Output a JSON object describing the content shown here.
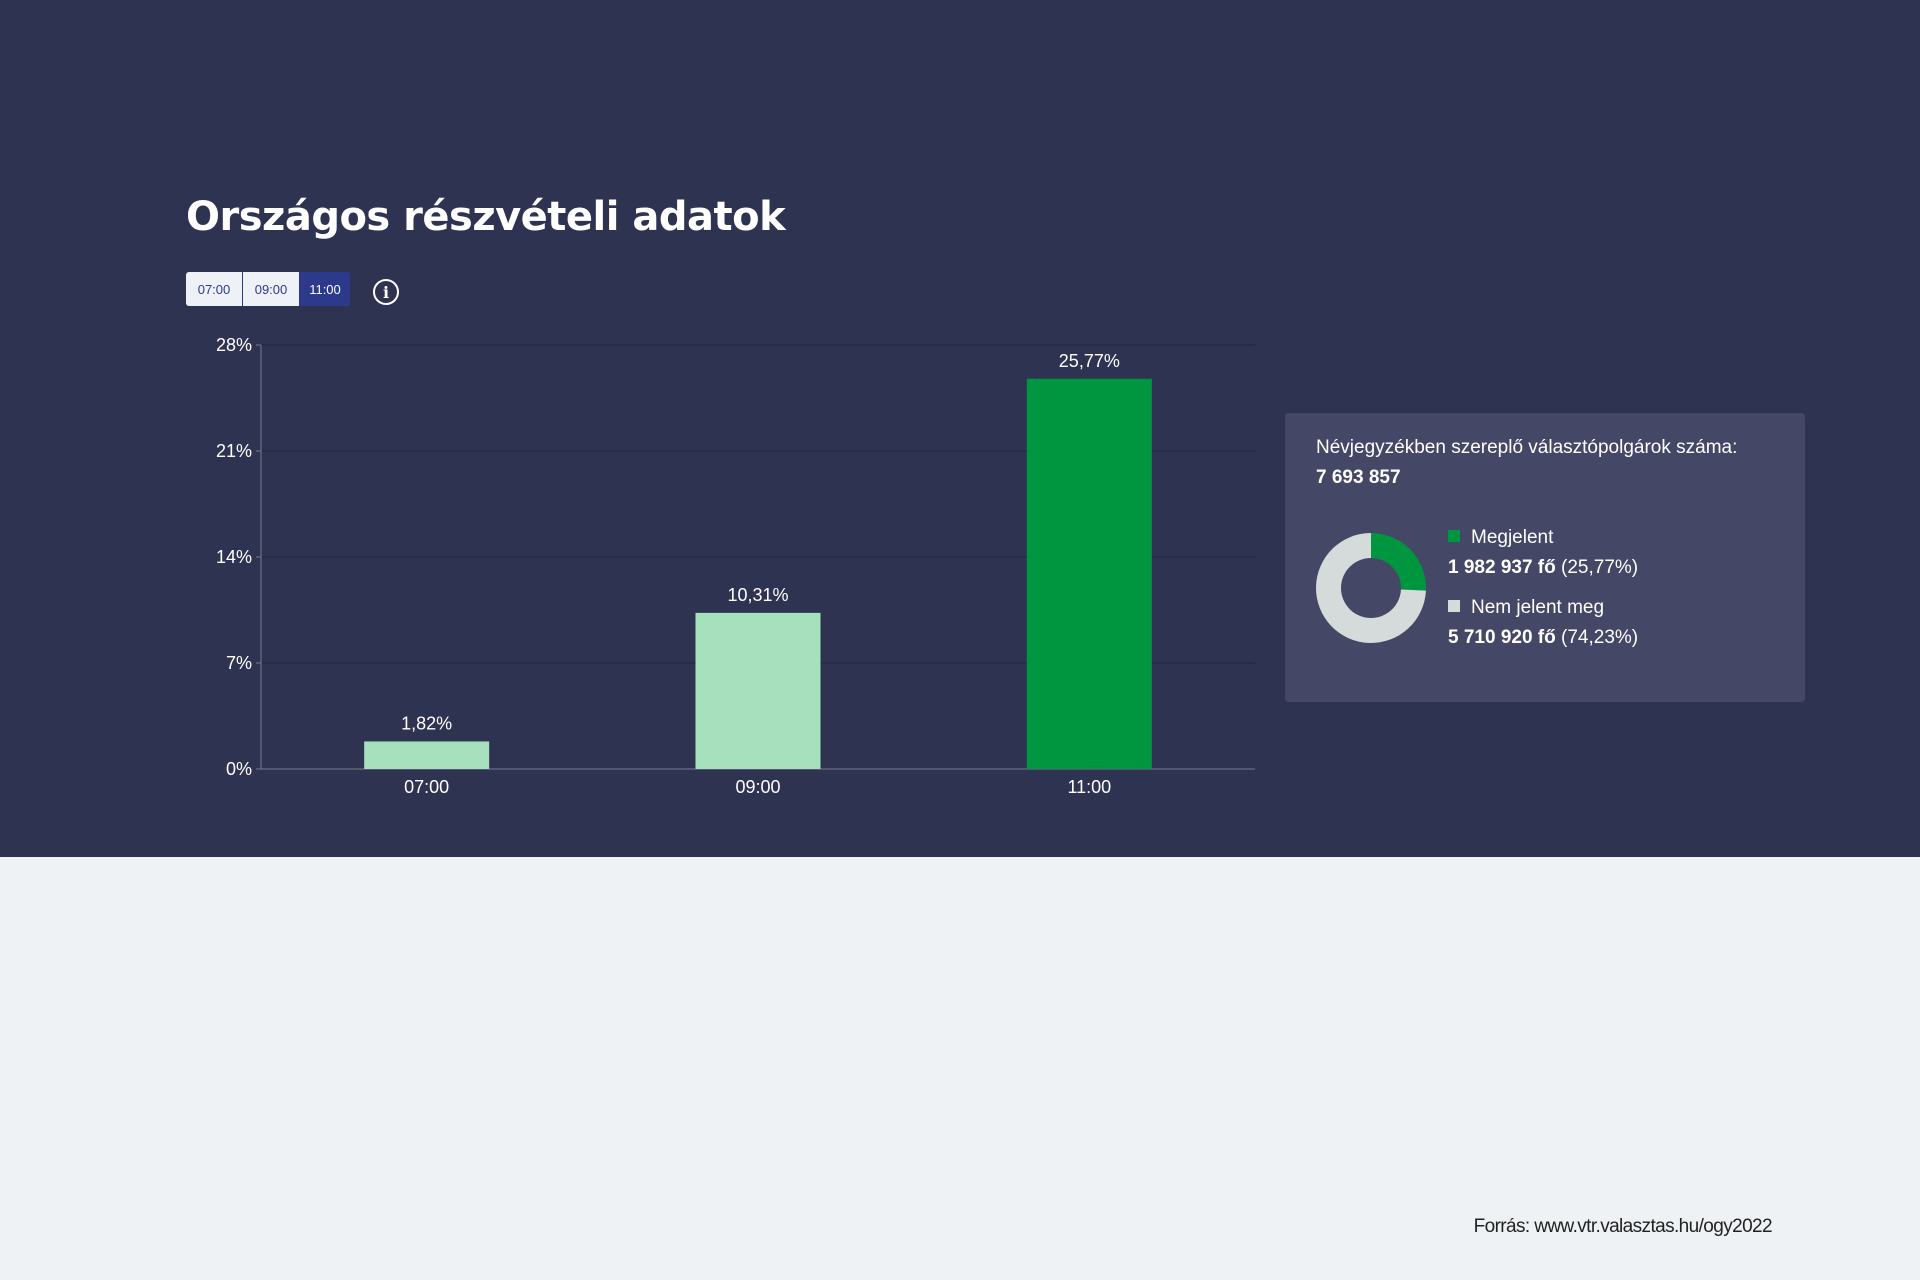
{
  "title": "Országos részvételi adatok",
  "time_buttons": [
    "07:00",
    "09:00",
    "11:00"
  ],
  "active_time": "11:00",
  "info_icon": "info-circle-icon",
  "colors": {
    "background": "#2f3352",
    "bar_light": "#a6e0bd",
    "bar_active": "#00963f",
    "not_voted": "#d5dbdb",
    "card": "#444866",
    "button_active": "#2d3a8c"
  },
  "chart_data": {
    "type": "bar",
    "categories": [
      "07:00",
      "09:00",
      "11:00"
    ],
    "values": [
      1.82,
      10.31,
      25.77
    ],
    "data_labels": [
      "1,82%",
      "10,31%",
      "25,77%"
    ],
    "yticks": [
      "0%",
      "7%",
      "14%",
      "21%",
      "28%"
    ],
    "ylim": [
      0,
      28
    ],
    "grid": true,
    "highlighted_category": "11:00"
  },
  "card": {
    "label": "Névjegyzékben szereplő választópolgárok száma:",
    "total": "7 693 857",
    "donut": {
      "type": "pie",
      "values": [
        25.77,
        74.23
      ]
    },
    "legend": [
      {
        "name": "Megjelent",
        "count": "1 982 937 fő",
        "pct": "(25,77%)",
        "color": "#00963f"
      },
      {
        "name": "Nem jelent meg",
        "count": "5 710 920 fő",
        "pct": "(74,23%)",
        "color": "#d5dbdb"
      }
    ]
  },
  "source": "Forrás: www.vtr.valasztas.hu/ogy2022"
}
